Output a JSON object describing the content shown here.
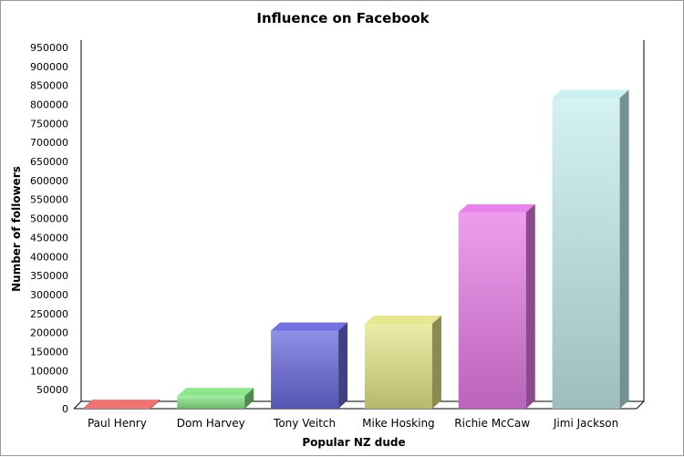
{
  "chart_data": {
    "type": "bar",
    "title": "Influence on Facebook",
    "xlabel": "Popular NZ dude",
    "ylabel": "Number of followers",
    "categories": [
      "Paul Henry",
      "Dom Harvey",
      "Tony Veitch",
      "Mike Hosking",
      "Richie McCaw",
      "Jimi Jackson"
    ],
    "values": [
      2000,
      33000,
      205000,
      223000,
      516000,
      817000
    ],
    "colors": [
      "#f06a6a",
      "#86e686",
      "#6a6ade",
      "#e6e68a",
      "#e87ce8",
      "#c6eeee"
    ],
    "ylim": [
      0,
      950000
    ],
    "yticks": [
      0,
      50000,
      100000,
      150000,
      200000,
      250000,
      300000,
      350000,
      400000,
      450000,
      500000,
      550000,
      600000,
      650000,
      700000,
      750000,
      800000,
      850000,
      900000,
      950000
    ],
    "grid": false,
    "style": "3d"
  }
}
